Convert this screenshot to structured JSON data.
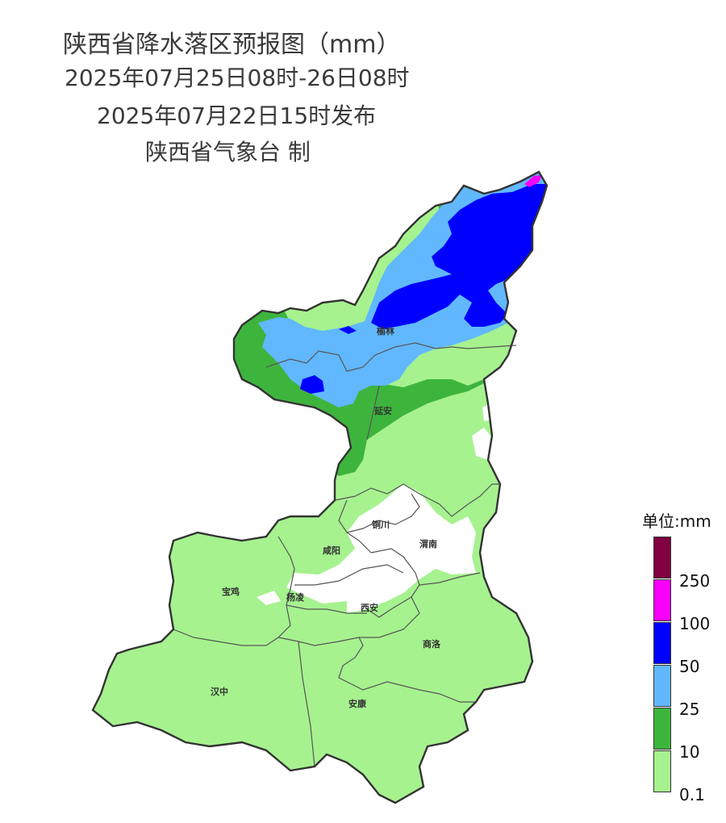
{
  "title": {
    "line1": "陕西省降水落区预报图（mm）",
    "line2": "2025年07月25日08时-26日08时",
    "line3": "2025年07月22日15时发布",
    "line4": "陕西省气象台 制"
  },
  "cities": [
    {
      "name": "榆林"
    },
    {
      "name": "延安"
    },
    {
      "name": "铜川"
    },
    {
      "name": "渭南"
    },
    {
      "name": "咸阳"
    },
    {
      "name": "宝鸡"
    },
    {
      "name": "杨凌"
    },
    {
      "name": "西安"
    },
    {
      "name": "商洛"
    },
    {
      "name": "汉中"
    },
    {
      "name": "安康"
    }
  ],
  "legend": {
    "title": "单位:mm",
    "bins": [
      {
        "color": "#800040"
      },
      {
        "color": "#fa00fa",
        "label": "250"
      },
      {
        "color": "#0000fe",
        "label": "100"
      },
      {
        "color": "#61b8ff",
        "label": "50"
      },
      {
        "color": "#3db53d",
        "label": "25"
      },
      {
        "color": "#a6f28f",
        "label": "10"
      },
      {
        "label": "0.1"
      }
    ]
  },
  "colors": {
    "r01": "#a6f28f",
    "r10": "#3db53d",
    "r25": "#61b8ff",
    "r50": "#0000fe",
    "r100": "#fa00fa",
    "r250": "#800040"
  }
}
